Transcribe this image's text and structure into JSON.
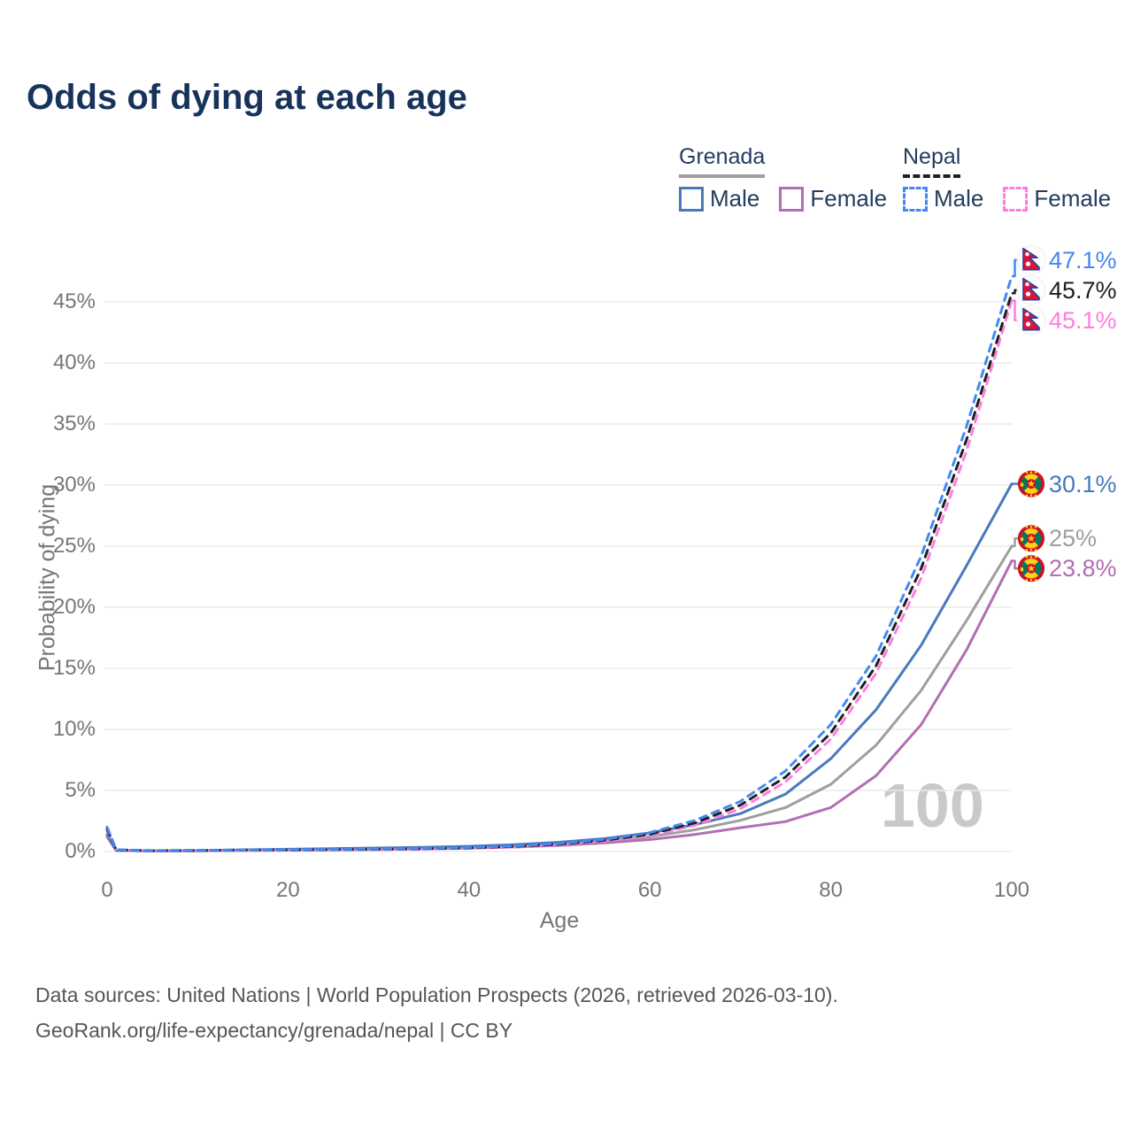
{
  "title": "Odds of dying at each age",
  "watermark": "100",
  "legend": {
    "groups": [
      {
        "country": "Grenada",
        "style": "solid",
        "underline_color": "#9e9e9e",
        "items": [
          {
            "label": "Male",
            "color": "#4879bd"
          },
          {
            "label": "Female",
            "color": "#b06fb2"
          }
        ]
      },
      {
        "country": "Nepal",
        "style": "dashed",
        "underline_color": "#1f1f1f",
        "items": [
          {
            "label": "Male",
            "color": "#4289f0"
          },
          {
            "label": "Female",
            "color": "#ff7ce0"
          }
        ]
      }
    ]
  },
  "footer": {
    "line1": "Data sources: United Nations | World Population Prospects (2026, retrieved 2026-03-10).",
    "line2": "GeoRank.org/life-expectancy/grenada/nepal | CC BY"
  },
  "chart_data": {
    "type": "line",
    "title": "Odds of dying at each age",
    "xlabel": "Age",
    "ylabel": "Probability of dying",
    "xlim": [
      0,
      100
    ],
    "ylim": [
      0,
      48.5
    ],
    "xticks": [
      0,
      20,
      40,
      60,
      80,
      100
    ],
    "yticks": [
      0,
      5,
      10,
      15,
      20,
      25,
      30,
      35,
      40,
      45
    ],
    "ytick_suffix": "%",
    "grid": "horizontal-only",
    "legend_position": "top-right",
    "x": [
      0,
      1,
      5,
      10,
      15,
      20,
      25,
      30,
      35,
      40,
      45,
      50,
      55,
      60,
      65,
      70,
      75,
      80,
      85,
      90,
      95,
      100
    ],
    "series": [
      {
        "name": "Grenada Female",
        "country": "Grenada",
        "sex": "Female",
        "color": "#b06fb2",
        "dash": false,
        "end_label": "23.8%",
        "end_value": 23.8,
        "values": [
          1.2,
          0.09,
          0.04,
          0.06,
          0.09,
          0.11,
          0.14,
          0.17,
          0.21,
          0.27,
          0.36,
          0.5,
          0.7,
          0.98,
          1.4,
          1.95,
          2.45,
          3.6,
          6.2,
          10.4,
          16.5,
          23.8
        ]
      },
      {
        "name": "Grenada Both sexes",
        "country": "Grenada",
        "sex": "Both",
        "color": "#9e9e9e",
        "dash": false,
        "end_label": "25%",
        "end_value": 25,
        "values": [
          1.3,
          0.09,
          0.05,
          0.07,
          0.11,
          0.15,
          0.19,
          0.23,
          0.28,
          0.35,
          0.46,
          0.62,
          0.86,
          1.22,
          1.78,
          2.55,
          3.6,
          5.5,
          8.7,
          13.2,
          18.9,
          25.0
        ]
      },
      {
        "name": "Grenada Male",
        "country": "Grenada",
        "sex": "Male",
        "color": "#4879bd",
        "dash": false,
        "end_label": "30.1%",
        "end_value": 30.1,
        "values": [
          1.4,
          0.1,
          0.05,
          0.08,
          0.14,
          0.19,
          0.24,
          0.29,
          0.35,
          0.43,
          0.56,
          0.76,
          1.06,
          1.52,
          2.2,
          3.1,
          4.7,
          7.6,
          11.6,
          16.9,
          23.4,
          30.1
        ]
      },
      {
        "name": "Nepal Female",
        "country": "Nepal",
        "sex": "Female",
        "color": "#ff7ce0",
        "dash": true,
        "end_label": "45.1%",
        "end_value": 45.1,
        "values": [
          1.7,
          0.13,
          0.06,
          0.08,
          0.1,
          0.12,
          0.14,
          0.17,
          0.21,
          0.27,
          0.38,
          0.54,
          0.84,
          1.3,
          2.15,
          3.5,
          5.7,
          9.2,
          14.6,
          22.4,
          32.8,
          45.1
        ]
      },
      {
        "name": "Nepal Both sexes",
        "country": "Nepal",
        "sex": "Both",
        "color": "#1f1f1f",
        "dash": true,
        "end_label": "45.7%",
        "end_value": 45.7,
        "values": [
          1.85,
          0.14,
          0.07,
          0.09,
          0.12,
          0.14,
          0.16,
          0.19,
          0.23,
          0.3,
          0.42,
          0.6,
          0.92,
          1.42,
          2.35,
          3.8,
          6.1,
          9.7,
          15.2,
          23.2,
          33.7,
          45.7
        ]
      },
      {
        "name": "Nepal Male",
        "country": "Nepal",
        "sex": "Male",
        "color": "#4289f0",
        "dash": true,
        "end_label": "47.1%",
        "end_value": 47.1,
        "values": [
          2.0,
          0.15,
          0.08,
          0.1,
          0.13,
          0.16,
          0.18,
          0.21,
          0.26,
          0.33,
          0.46,
          0.66,
          1.0,
          1.55,
          2.55,
          4.1,
          6.6,
          10.4,
          16.0,
          24.2,
          34.8,
          47.1
        ]
      }
    ]
  }
}
